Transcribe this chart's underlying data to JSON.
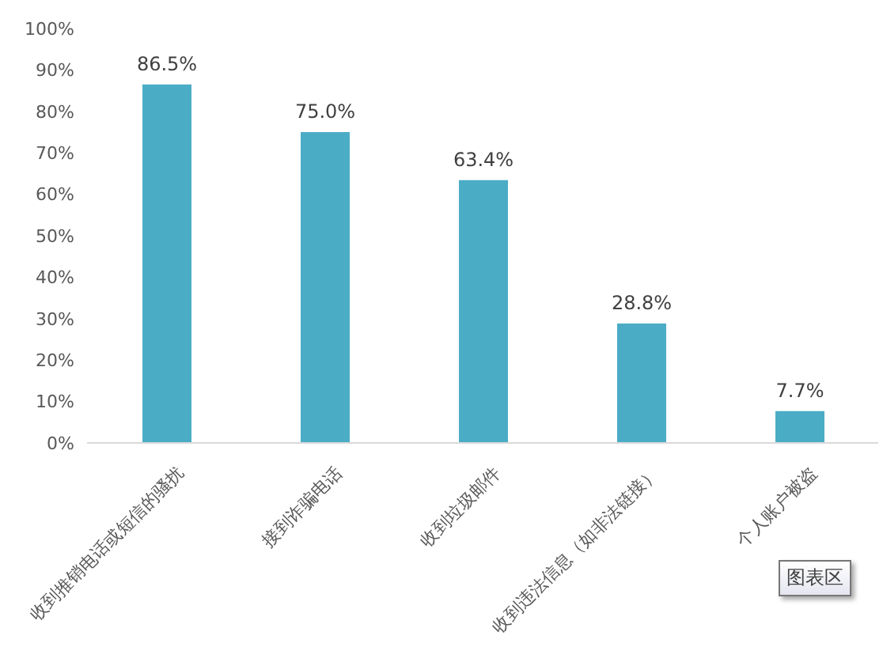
{
  "chart_data": {
    "type": "bar",
    "categories": [
      "收到推销电话或短信的骚扰",
      "接到诈骗电话",
      "收到垃圾邮件",
      "收到违法信息（如非法链接）",
      "个人账户被盗"
    ],
    "values": [
      86.5,
      75.0,
      63.4,
      28.8,
      7.7
    ],
    "color": "#4bacc6",
    "value_labels": [
      "86.5%",
      "75.0%",
      "63.4%",
      "28.8%",
      "7.7%"
    ],
    "ylim": [
      0,
      100
    ],
    "yticks": [
      {
        "value": 0,
        "label": "0%"
      },
      {
        "value": 10,
        "label": "10%"
      },
      {
        "value": 20,
        "label": "20%"
      },
      {
        "value": 30,
        "label": "30%"
      },
      {
        "value": 40,
        "label": "40%"
      },
      {
        "value": 50,
        "label": "50%"
      },
      {
        "value": 60,
        "label": "60%"
      },
      {
        "value": 70,
        "label": "70%"
      },
      {
        "value": 80,
        "label": "80%"
      },
      {
        "value": 90,
        "label": "90%"
      },
      {
        "value": 100,
        "label": "100%"
      }
    ],
    "annotations": [
      "图表区"
    ]
  }
}
